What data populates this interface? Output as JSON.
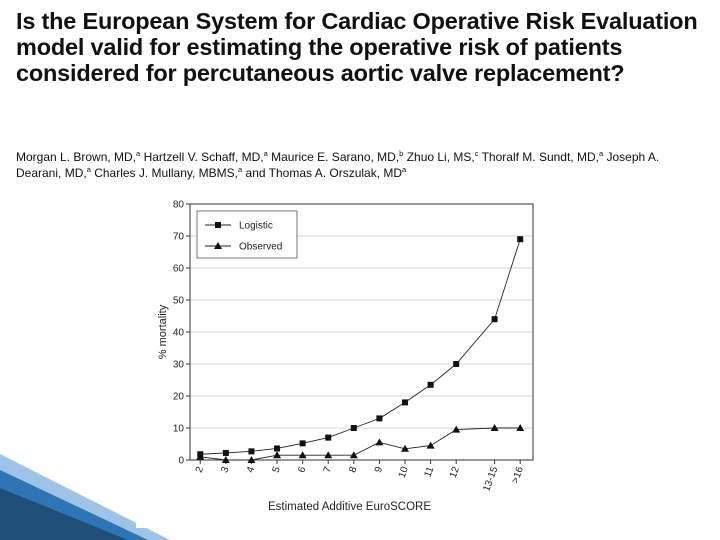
{
  "slide": {
    "title": "Is the European System for Cardiac Operative Risk Evaluation model valid for estimating the operative risk of patients considered for percutaneous aortic valve replacement?",
    "authors": [
      {
        "name": "Morgan L. Brown, MD,",
        "sup": "a",
        "sep": " "
      },
      {
        "name": "Hartzell V. Schaff, MD,",
        "sup": "a",
        "sep": " "
      },
      {
        "name": "Maurice E. Sarano, MD,",
        "sup": "b",
        "sep": " "
      },
      {
        "name": "Zhuo Li, MS,",
        "sup": "c",
        "sep": " "
      },
      {
        "name": "Thoralf M. Sundt, MD,",
        "sup": "a",
        "sep": " "
      },
      {
        "name": "Joseph A. Dearani, MD,",
        "sup": "a",
        "sep": " "
      },
      {
        "name": "Charles J. Mullany, MBMS,",
        "sup": "a",
        "sep": " and "
      },
      {
        "name": "Thomas A. Orszulak, MD",
        "sup": "a",
        "sep": ""
      }
    ]
  },
  "theme": {
    "deco_dark": "#1f4e79",
    "deco_mid": "#2e75b6",
    "deco_light": "#9dc3e6"
  },
  "chart_data": {
    "type": "line",
    "title": "",
    "xlabel": "Estimated Additive EuroSCORE",
    "ylabel": "% mortality",
    "ylim": [
      0,
      80
    ],
    "yticks": [
      0,
      10,
      20,
      30,
      40,
      50,
      60,
      70,
      80
    ],
    "ytick_labels": [
      "0",
      "10",
      "20",
      "30",
      "40",
      "50",
      "60",
      "70",
      "80"
    ],
    "categories": [
      "2",
      "3",
      "4",
      "5",
      "6",
      "7",
      "8",
      "9",
      "10",
      "11",
      "12",
      "13-15",
      ">16"
    ],
    "legend_position": "top-left",
    "series": [
      {
        "name": "Logistic",
        "marker": "square",
        "x": [
          2,
          3,
          4,
          5,
          6,
          7,
          8,
          9,
          10,
          11,
          12,
          13.5,
          14.5
        ],
        "values": [
          1.8,
          2.2,
          2.7,
          3.6,
          5.2,
          7.0,
          10.0,
          13.0,
          18.0,
          23.5,
          30.0,
          44.0,
          69.0
        ]
      },
      {
        "name": "Observed",
        "marker": "triangle",
        "x": [
          2,
          3,
          4,
          5,
          6,
          7,
          8,
          9,
          10,
          11,
          12,
          13.5,
          14.5
        ],
        "values": [
          1.0,
          0.0,
          0.0,
          1.5,
          1.5,
          1.5,
          1.5,
          5.5,
          3.5,
          4.5,
          9.5,
          10.0,
          10.0
        ]
      }
    ]
  }
}
